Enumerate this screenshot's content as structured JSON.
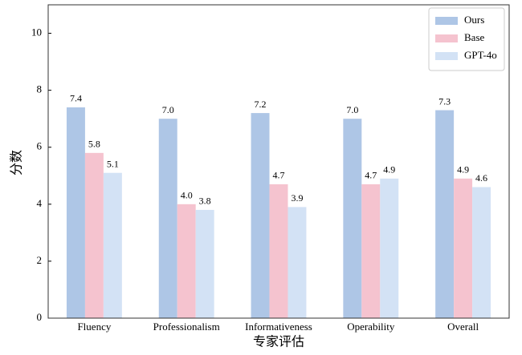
{
  "chart_data": {
    "type": "bar",
    "ylabel": "分数",
    "xlabel": "专家评估",
    "categories": [
      "Fluency",
      "Professionalism",
      "Informativeness",
      "Operability",
      "Overall"
    ],
    "series": [
      {
        "name": "Ours",
        "color": "#aec6e6",
        "values": [
          7.4,
          7.0,
          7.2,
          7.0,
          7.3
        ],
        "value_labels": [
          "7.4",
          "7.0",
          "7.2",
          "7.0",
          "7.3"
        ]
      },
      {
        "name": "Base",
        "color": "#f5c3cf",
        "values": [
          5.8,
          4.0,
          4.7,
          4.7,
          4.9
        ],
        "value_labels": [
          "5.8",
          "4.0",
          "4.7",
          "4.7",
          "4.9"
        ]
      },
      {
        "name": "GPT-4o",
        "color": "#d3e2f5",
        "values": [
          5.1,
          3.8,
          3.9,
          4.9,
          4.6
        ],
        "value_labels": [
          "5.1",
          "3.8",
          "3.9",
          "4.9",
          "4.6"
        ]
      }
    ],
    "ylim": [
      0,
      11
    ],
    "yticks": [
      0,
      2,
      4,
      6,
      8,
      10
    ],
    "legend": "upper right"
  }
}
